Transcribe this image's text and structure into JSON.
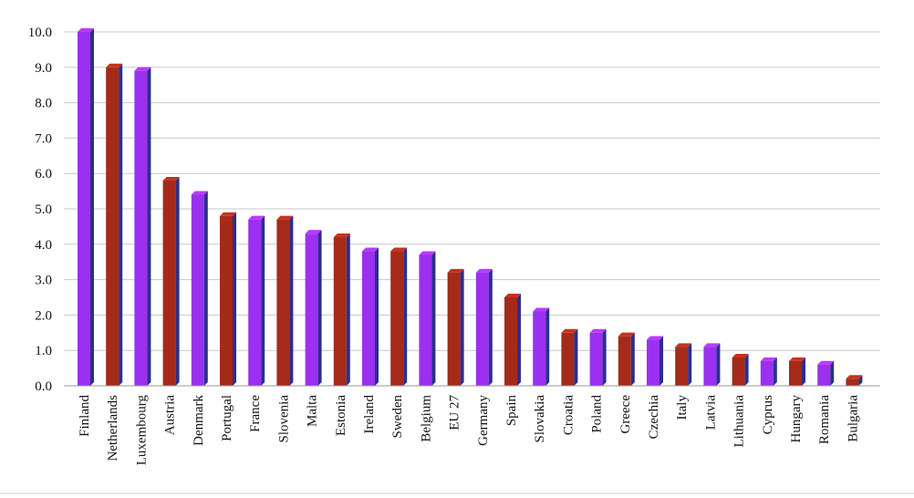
{
  "chart_data": {
    "type": "bar",
    "title": "",
    "xlabel": "",
    "ylabel": "",
    "ylim": [
      0,
      10
    ],
    "y_ticks": [
      "0.0",
      "1.0",
      "2.0",
      "3.0",
      "4.0",
      "5.0",
      "6.0",
      "7.0",
      "8.0",
      "9.0",
      "10.0"
    ],
    "grid": true,
    "legend": "none",
    "bar_style": "3d",
    "colors": {
      "purple": "#9b30f0",
      "red": "#a52a1a",
      "gridline": "#c8c8c8"
    },
    "bars": [
      {
        "category": "Finland",
        "value": 10.0,
        "color": "purple"
      },
      {
        "category": "Netherlands",
        "value": 9.0,
        "color": "red"
      },
      {
        "category": "Luxembourg",
        "value": 8.9,
        "color": "purple"
      },
      {
        "category": "Austria",
        "value": 5.8,
        "color": "red"
      },
      {
        "category": "Denmark",
        "value": 5.4,
        "color": "purple"
      },
      {
        "category": "Portugal",
        "value": 4.8,
        "color": "red"
      },
      {
        "category": "France",
        "value": 4.7,
        "color": "purple"
      },
      {
        "category": "Slovenia",
        "value": 4.7,
        "color": "red"
      },
      {
        "category": "Malta",
        "value": 4.3,
        "color": "purple"
      },
      {
        "category": "Estonia",
        "value": 4.2,
        "color": "red"
      },
      {
        "category": "Ireland",
        "value": 3.8,
        "color": "purple"
      },
      {
        "category": "Sweden",
        "value": 3.8,
        "color": "red"
      },
      {
        "category": "Belgium",
        "value": 3.7,
        "color": "purple"
      },
      {
        "category": "EU 27",
        "value": 3.2,
        "color": "red"
      },
      {
        "category": "Germany",
        "value": 3.2,
        "color": "purple"
      },
      {
        "category": "Spain",
        "value": 2.5,
        "color": "red"
      },
      {
        "category": "Slovakia",
        "value": 2.1,
        "color": "purple"
      },
      {
        "category": "Croatia",
        "value": 1.5,
        "color": "red"
      },
      {
        "category": "Poland",
        "value": 1.5,
        "color": "purple"
      },
      {
        "category": "Greece",
        "value": 1.4,
        "color": "red"
      },
      {
        "category": "Czechia",
        "value": 1.3,
        "color": "purple"
      },
      {
        "category": "Italy",
        "value": 1.1,
        "color": "red"
      },
      {
        "category": "Latvia",
        "value": 1.1,
        "color": "purple"
      },
      {
        "category": "Lithuania",
        "value": 0.8,
        "color": "red"
      },
      {
        "category": "Cyprus",
        "value": 0.7,
        "color": "purple"
      },
      {
        "category": "Hungary",
        "value": 0.7,
        "color": "red"
      },
      {
        "category": "Romania",
        "value": 0.6,
        "color": "purple"
      },
      {
        "category": "Bulgaria",
        "value": 0.2,
        "color": "red"
      }
    ]
  }
}
